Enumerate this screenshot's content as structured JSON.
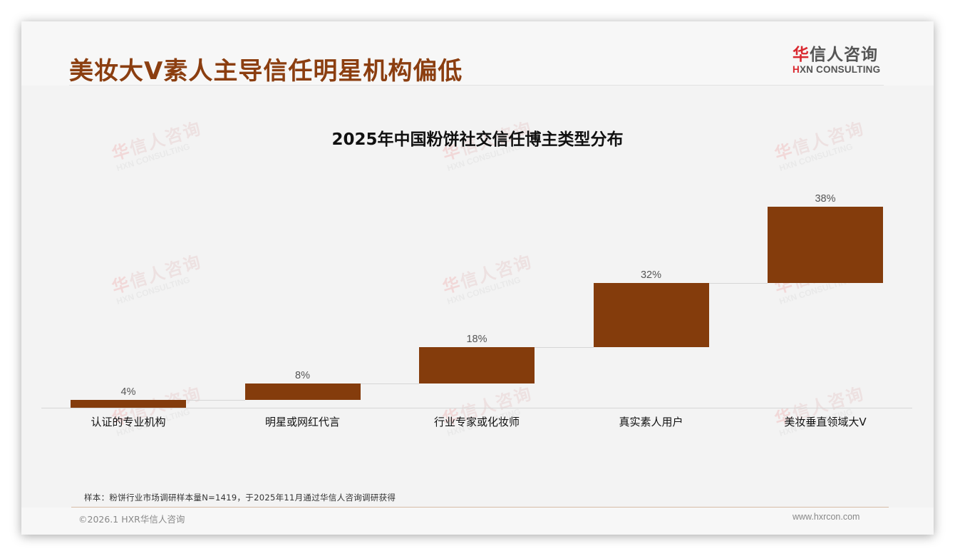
{
  "header": {
    "title": "美妆大V素人主导信任明星机构偏低",
    "logo": {
      "cn_accent": "华",
      "cn_rest": "信人咨询",
      "en_accent": "H",
      "en_rest": "XN CONSULTING"
    }
  },
  "watermark": {
    "cn_accent": "华",
    "cn_rest": "信人咨询",
    "en": "HXN CONSULTING"
  },
  "chart_data": {
    "type": "bar",
    "subtype": "waterfall",
    "title": "2025年中国粉饼社交信任博主类型分布",
    "categories": [
      "认证的专业机构",
      "明星或网红代言",
      "行业专家或化妆师",
      "真实素人用户",
      "美妆垂直领域大V"
    ],
    "values": [
      4,
      8,
      18,
      32,
      38
    ],
    "value_labels": [
      "4%",
      "8%",
      "18%",
      "32%",
      "38%"
    ],
    "unit": "%",
    "xlabel": "",
    "ylabel": "",
    "ylim": [
      0,
      100
    ],
    "grid": false,
    "legend": null,
    "bar_color": "#843c0c",
    "connector_color": "#d6d6d6"
  },
  "footer": {
    "note": "样本：粉饼行业市场调研样本量N=1419，于2025年11月通过华信人咨询调研获得",
    "copyright": "©2026.1 HXR华信人咨询",
    "url": "www.hxrcon.com"
  },
  "colors": {
    "title": "#8b3e10",
    "accent_red": "#d9282f",
    "bar": "#843c0c",
    "background": "#f3f3f3"
  }
}
